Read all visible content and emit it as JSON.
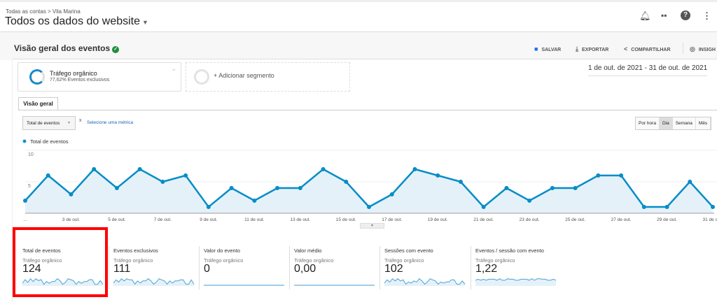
{
  "header": {
    "breadcrumb": "Todas as contas > Vila Marina",
    "property": "Todos os dados do website",
    "icons": [
      "bell-icon",
      "apps-icon",
      "help-icon",
      "more-icon"
    ]
  },
  "report": {
    "title": "Visão geral dos eventos",
    "actions": {
      "save": "SALVAR",
      "export": "EXPORTAR",
      "share": "COMPARTILHAR",
      "insights": "INSIGH"
    }
  },
  "segments": {
    "active": {
      "name": "Tráfego orgânico",
      "detail": "77,62% Eventos exclusivos"
    },
    "add": "+ Adicionar segmento"
  },
  "date_range": "1 de out. de 2021 - 31 de out. de 2021",
  "tabs": [
    "Visão geral"
  ],
  "controls": {
    "metric": "Total de eventos",
    "remove": "x",
    "select_metric": "Selecione uma métrica",
    "granularity": [
      "Por hora",
      "Dia",
      "Semana",
      "Mês"
    ],
    "selected_granularity": "Dia"
  },
  "colors": {
    "line": "#058dc7",
    "fill": "#e5f1f8",
    "highlight": "#ff0000"
  },
  "chart_data": {
    "type": "area",
    "series": [
      {
        "name": "Total de eventos",
        "values": [
          2,
          6,
          3,
          7,
          4,
          7,
          5,
          6,
          1,
          4,
          2,
          4,
          4,
          7,
          5,
          1,
          3,
          7,
          6,
          5,
          1,
          4,
          2,
          4,
          4,
          6,
          6,
          1,
          1,
          5,
          1
        ]
      }
    ],
    "x": [
      "1 de out.",
      "2 de out.",
      "3 de out.",
      "4 de out.",
      "5 de out.",
      "6 de out.",
      "7 de out.",
      "8 de out.",
      "9 de out.",
      "10 de out.",
      "11 de out.",
      "12 de out.",
      "13 de out.",
      "14 de out.",
      "15 de out.",
      "16 de out.",
      "17 de out.",
      "18 de out.",
      "19 de out.",
      "20 de out.",
      "21 de out.",
      "22 de out.",
      "23 de out.",
      "24 de out.",
      "25 de out.",
      "26 de out.",
      "27 de out.",
      "28 de out.",
      "29 de out.",
      "30 de out.",
      "31 de out."
    ],
    "x_tick_labels": [
      "...",
      "3 de out.",
      "5 de out.",
      "7 de out.",
      "9 de out.",
      "11 de out.",
      "13 de out.",
      "15 de out.",
      "17 de out.",
      "19 de out.",
      "21 de out.",
      "23 de out.",
      "25 de out.",
      "27 de out.",
      "29 de out.",
      "31 de out."
    ],
    "y_ticks": [
      "5",
      "10"
    ],
    "ylim": [
      0,
      10
    ],
    "legend": "top-left",
    "grid": true
  },
  "metrics": [
    {
      "name": "Total de eventos",
      "segment": "Tráfego orgânico",
      "value": "124",
      "trend": [
        2,
        6,
        3,
        7,
        4,
        7,
        5,
        6,
        1,
        4,
        2,
        4,
        4,
        7,
        5,
        1,
        3,
        7,
        6,
        5,
        1,
        4,
        2,
        4,
        4,
        6,
        6,
        1,
        1,
        5,
        1
      ]
    },
    {
      "name": "Eventos exclusivos",
      "segment": "Tráfego orgânico",
      "value": "111",
      "trend": [
        2,
        5,
        3,
        6,
        4,
        6,
        5,
        5,
        1,
        4,
        2,
        4,
        4,
        6,
        4,
        1,
        3,
        6,
        5,
        4,
        1,
        4,
        2,
        4,
        4,
        5,
        5,
        1,
        1,
        5,
        1
      ]
    },
    {
      "name": "Valor do evento",
      "segment": "Tráfego orgânico",
      "value": "0",
      "trend": [
        0,
        0,
        0,
        0,
        0,
        0,
        0,
        0,
        0,
        0,
        0,
        0,
        0,
        0,
        0,
        0,
        0,
        0,
        0,
        0,
        0,
        0,
        0,
        0,
        0,
        0,
        0,
        0,
        0,
        0,
        0
      ]
    },
    {
      "name": "Valor médio",
      "segment": "Tráfego orgânico",
      "value": "0,00",
      "trend": [
        0,
        0,
        0,
        0,
        0,
        0,
        0,
        0,
        0,
        0,
        0,
        0,
        0,
        0,
        0,
        0,
        0,
        0,
        0,
        0,
        0,
        0,
        0,
        0,
        0,
        0,
        0,
        0,
        0,
        0,
        0
      ]
    },
    {
      "name": "Sessões com evento",
      "segment": "Tráfego orgânico",
      "value": "102",
      "trend": [
        2,
        5,
        3,
        6,
        4,
        6,
        4,
        5,
        1,
        3,
        2,
        4,
        3,
        6,
        4,
        1,
        3,
        6,
        5,
        4,
        1,
        3,
        2,
        3,
        3,
        5,
        5,
        1,
        1,
        4,
        1
      ]
    },
    {
      "name": "Eventos / sessão com evento",
      "segment": "Tráfego orgânico",
      "value": "1,22",
      "trend": [
        1,
        1.2,
        1,
        1.2,
        1,
        1.2,
        1.2,
        1.2,
        1,
        1.3,
        1,
        1,
        1.3,
        1.2,
        1.2,
        1,
        1,
        1.2,
        1.2,
        1.2,
        1,
        1.3,
        1,
        1.3,
        1.3,
        1.2,
        1.2,
        1,
        1,
        1.2,
        1
      ]
    }
  ]
}
